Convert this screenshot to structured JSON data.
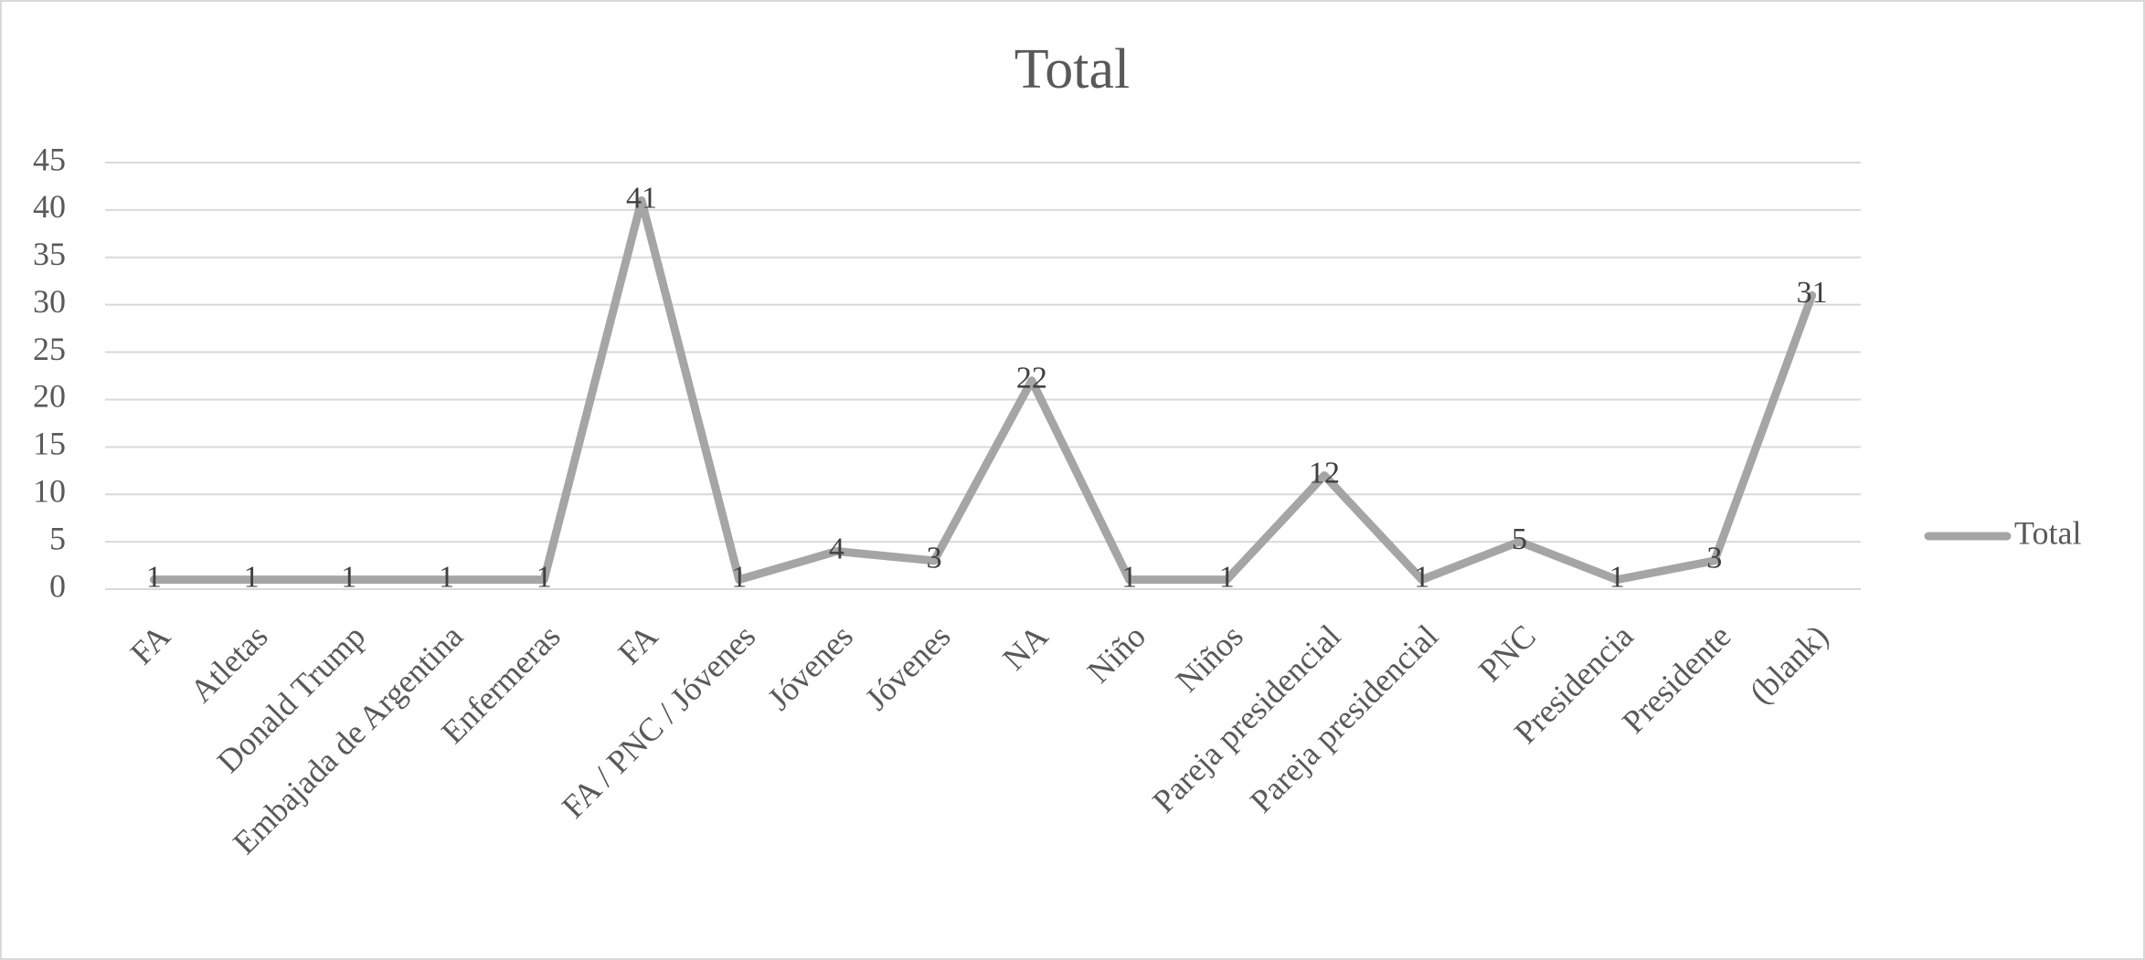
{
  "chart_data": {
    "type": "line",
    "title": "Total",
    "categories": [
      "FA",
      "Atletas",
      "Donald Trump",
      "Embajada de Argentina",
      "Enfermeras",
      "FA",
      "FA / PNC / Jóvenes",
      "Jóvenes",
      "Jóvenes",
      "NA",
      "Niño",
      "Niños",
      "Pareja presidencial",
      "Pareja presidencial",
      "PNC",
      "Presidencia",
      "Presidente",
      "(blank)"
    ],
    "series": [
      {
        "name": "Total",
        "color": "#a5a5a5",
        "values": [
          1,
          1,
          1,
          1,
          1,
          41,
          1,
          4,
          3,
          22,
          1,
          1,
          12,
          1,
          5,
          1,
          3,
          31
        ]
      }
    ],
    "ylim": [
      0,
      45
    ],
    "yticks": [
      0,
      5,
      10,
      15,
      20,
      25,
      30,
      35,
      40,
      45
    ],
    "grid": true,
    "legend": "right"
  }
}
